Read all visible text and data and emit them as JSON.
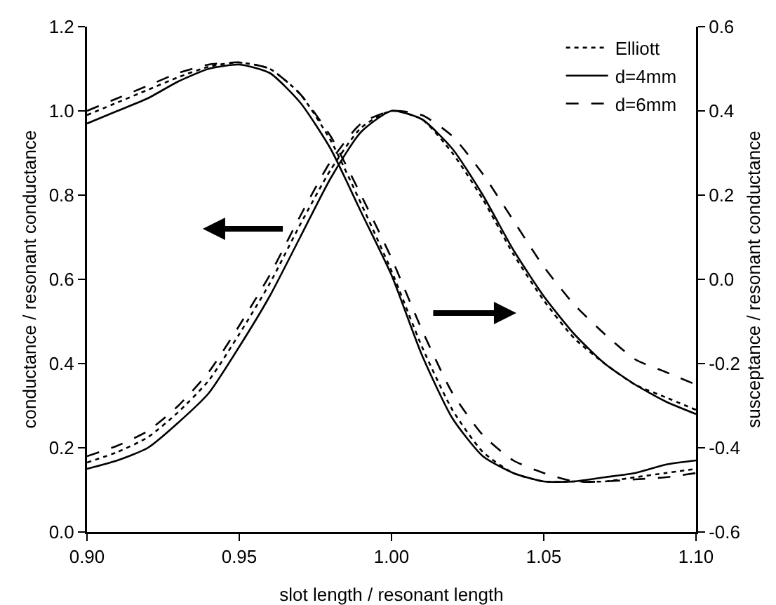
{
  "chart_data": {
    "type": "line",
    "xlabel": "slot length / resonant length",
    "ylabel": "conductance / resonant conductance",
    "y2label": "susceptance / resonant conductance",
    "x": [
      0.9,
      0.91,
      0.92,
      0.93,
      0.94,
      0.95,
      0.96,
      0.97,
      0.98,
      0.99,
      1.0,
      1.01,
      1.02,
      1.03,
      1.04,
      1.05,
      1.06,
      1.07,
      1.08,
      1.09,
      1.1
    ],
    "series": [
      {
        "name": "Elliott",
        "color": "#000000",
        "line_style": "dotted",
        "values": [
          0.165,
          0.19,
          0.225,
          0.285,
          0.36,
          0.47,
          0.59,
          0.73,
          0.86,
          0.96,
          1.0,
          0.98,
          0.9,
          0.79,
          0.66,
          0.55,
          0.46,
          0.4,
          0.35,
          0.32,
          0.29
        ]
      },
      {
        "name": "d=4mm",
        "color": "#000000",
        "line_style": "solid",
        "values": [
          0.15,
          0.17,
          0.2,
          0.26,
          0.33,
          0.44,
          0.56,
          0.7,
          0.84,
          0.95,
          1.0,
          0.98,
          0.91,
          0.8,
          0.67,
          0.56,
          0.47,
          0.4,
          0.35,
          0.31,
          0.28
        ]
      },
      {
        "name": "d=6mm",
        "color": "#000000",
        "line_style": "dashed",
        "values": [
          0.18,
          0.205,
          0.24,
          0.3,
          0.38,
          0.49,
          0.61,
          0.75,
          0.88,
          0.97,
          1.0,
          0.99,
          0.94,
          0.85,
          0.74,
          0.63,
          0.54,
          0.47,
          0.41,
          0.38,
          0.35
        ]
      },
      {
        "color": "#000000",
        "line_style": "dotted",
        "axis": "y2",
        "values": [
          0.39,
          0.42,
          0.45,
          0.48,
          0.505,
          0.515,
          0.5,
          0.44,
          0.33,
          0.18,
          0.02,
          -0.16,
          -0.31,
          -0.41,
          -0.46,
          -0.48,
          -0.48,
          -0.48,
          -0.47,
          -0.46,
          -0.45
        ]
      },
      {
        "color": "#000000",
        "line_style": "solid",
        "axis": "y2",
        "values": [
          0.37,
          0.4,
          0.43,
          0.47,
          0.5,
          0.51,
          0.49,
          0.42,
          0.31,
          0.16,
          0.01,
          -0.18,
          -0.33,
          -0.42,
          -0.46,
          -0.48,
          -0.48,
          -0.47,
          -0.46,
          -0.44,
          -0.43
        ]
      },
      {
        "color": "#000000",
        "line_style": "dashed",
        "axis": "y2",
        "values": [
          0.4,
          0.43,
          0.46,
          0.49,
          0.51,
          0.515,
          0.5,
          0.44,
          0.34,
          0.2,
          0.05,
          -0.12,
          -0.27,
          -0.37,
          -0.43,
          -0.46,
          -0.48,
          -0.48,
          -0.475,
          -0.47,
          -0.46
        ]
      }
    ],
    "xlim": [
      0.9,
      1.1
    ],
    "xticks": [
      {
        "value": 0.9,
        "label": "0.90"
      },
      0.95,
      {
        "value": 1.0,
        "label": "1.00"
      },
      1.05,
      {
        "value": 1.1,
        "label": "1.10"
      }
    ],
    "ylim": [
      0,
      1.2
    ],
    "yticks": [
      {
        "value": 0,
        "label": "0.0"
      },
      0.2,
      0.4,
      0.6,
      0.8,
      {
        "value": 1,
        "label": "1.0"
      },
      1.2
    ],
    "y2lim": [
      -0.6,
      0.6
    ],
    "y2ticks": [
      -0.6,
      -0.4,
      -0.2,
      {
        "value": 0,
        "label": "0.0"
      },
      0.2,
      0.4,
      0.6
    ],
    "grid": false,
    "legend": "top right",
    "marker": "none"
  }
}
